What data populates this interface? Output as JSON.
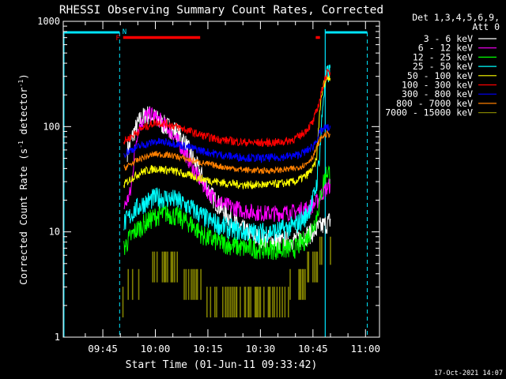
{
  "chart_data": {
    "type": "line",
    "title": "RHESSI Observing Summary Count Rates, Corrected",
    "xlabel": "Start Time (01-Jun-11 09:33:42)",
    "ylabel": "Corrected Count Rate (s",
    "ylabel_sup": "-1",
    "ylabel_tail": " detector",
    "ylabel_sup2": "-1",
    "ylabel_end": ")",
    "yscale": "log",
    "ylim": [
      1,
      1000
    ],
    "xlim_minutes": [
      33.7,
      124
    ],
    "yticks": [
      {
        "v": 1,
        "label": "1"
      },
      {
        "v": 10,
        "label": "10"
      },
      {
        "v": 100,
        "label": "100"
      },
      {
        "v": 1000,
        "label": "1000"
      }
    ],
    "xticks": [
      {
        "m": 45,
        "label": "09:45"
      },
      {
        "m": 60,
        "label": "10:00"
      },
      {
        "m": 75,
        "label": "10:15"
      },
      {
        "m": 90,
        "label": "10:30"
      },
      {
        "m": 105,
        "label": "10:45"
      },
      {
        "m": 120,
        "label": "11:00"
      }
    ],
    "legend_header": [
      "Det 1,3,4,5,6,9,",
      "Att 0"
    ],
    "legend_placement": "top-right outside",
    "series": [
      {
        "name": "3 - 6 keV",
        "color": "#ffffff",
        "noise": 0.1,
        "points": [
          [
            52,
            58
          ],
          [
            54,
            90
          ],
          [
            56,
            120
          ],
          [
            58,
            130
          ],
          [
            60,
            120
          ],
          [
            62,
            105
          ],
          [
            66,
            90
          ],
          [
            68,
            75
          ],
          [
            70,
            55
          ],
          [
            73,
            35
          ],
          [
            76,
            22
          ],
          [
            80,
            15
          ],
          [
            84,
            11
          ],
          [
            88,
            9
          ],
          [
            92,
            8.5
          ],
          [
            96,
            8
          ],
          [
            100,
            8.5
          ],
          [
            104,
            9.5
          ],
          [
            107,
            11
          ],
          [
            109,
            12
          ],
          [
            110,
            13
          ]
        ]
      },
      {
        "name": "6 - 12 keV",
        "color": "#ff00ff",
        "noise": 0.08,
        "points": [
          [
            51,
            17
          ],
          [
            52,
            20
          ],
          [
            53,
            24
          ],
          [
            54,
            55
          ],
          [
            55,
            95
          ],
          [
            57,
            125
          ],
          [
            59,
            130
          ],
          [
            62,
            110
          ],
          [
            65,
            85
          ],
          [
            68,
            60
          ],
          [
            70,
            45
          ],
          [
            73,
            30
          ],
          [
            76,
            22
          ],
          [
            80,
            18
          ],
          [
            85,
            16
          ],
          [
            90,
            15
          ],
          [
            95,
            15
          ],
          [
            100,
            15.5
          ],
          [
            104,
            17
          ],
          [
            106,
            19
          ],
          [
            107.5,
            23
          ],
          [
            109,
            26
          ],
          [
            110,
            28
          ]
        ]
      },
      {
        "name": "12 - 25 keV",
        "color": "#00ff00",
        "noise": 0.1,
        "points": [
          [
            51,
            7
          ],
          [
            52,
            8
          ],
          [
            54,
            10
          ],
          [
            57,
            12
          ],
          [
            60,
            14
          ],
          [
            63,
            15
          ],
          [
            66,
            14
          ],
          [
            70,
            12
          ],
          [
            74,
            9
          ],
          [
            78,
            8
          ],
          [
            85,
            7
          ],
          [
            95,
            6.8
          ],
          [
            100,
            7
          ],
          [
            103,
            8.5
          ],
          [
            105,
            11
          ],
          [
            106,
            14
          ],
          [
            107,
            20
          ],
          [
            108,
            30
          ],
          [
            109,
            38
          ],
          [
            110,
            35
          ]
        ]
      },
      {
        "name": "25 - 50 keV",
        "color": "#00ffff",
        "noise": 0.1,
        "points": [
          [
            51,
            12
          ],
          [
            52,
            13
          ],
          [
            54,
            16
          ],
          [
            57,
            19
          ],
          [
            60,
            21
          ],
          [
            63,
            21
          ],
          [
            66,
            20
          ],
          [
            70,
            17
          ],
          [
            75,
            13
          ],
          [
            80,
            11
          ],
          [
            85,
            10
          ],
          [
            90,
            9.8
          ],
          [
            95,
            10.2
          ],
          [
            100,
            11.5
          ],
          [
            103,
            14
          ],
          [
            105,
            20
          ],
          [
            106,
            28
          ],
          [
            107,
            60
          ],
          [
            108,
            200
          ],
          [
            109,
            310
          ],
          [
            110,
            330
          ]
        ]
      },
      {
        "name": "50 - 100 keV",
        "color": "#ffff00",
        "noise": 0.04,
        "points": [
          [
            51,
            28
          ],
          [
            53,
            32
          ],
          [
            56,
            37
          ],
          [
            60,
            40
          ],
          [
            65,
            38
          ],
          [
            70,
            34
          ],
          [
            75,
            31
          ],
          [
            80,
            29
          ],
          [
            85,
            28
          ],
          [
            90,
            28
          ],
          [
            95,
            28.5
          ],
          [
            100,
            30
          ],
          [
            103,
            34
          ],
          [
            105,
            40
          ],
          [
            106,
            48
          ],
          [
            107,
            150
          ],
          [
            108,
            250
          ],
          [
            109,
            290
          ],
          [
            110,
            300
          ]
        ]
      },
      {
        "name": "100 - 300 keV",
        "color": "#ff0000",
        "noise": 0.04,
        "points": [
          [
            51,
            72
          ],
          [
            53,
            80
          ],
          [
            56,
            95
          ],
          [
            60,
            110
          ],
          [
            64,
            105
          ],
          [
            68,
            95
          ],
          [
            72,
            85
          ],
          [
            76,
            78
          ],
          [
            80,
            74
          ],
          [
            85,
            71
          ],
          [
            90,
            70
          ],
          [
            95,
            71
          ],
          [
            98,
            73
          ],
          [
            101,
            80
          ],
          [
            103,
            92
          ],
          [
            105,
            110
          ],
          [
            106,
            140
          ],
          [
            107,
            180
          ],
          [
            108,
            260
          ],
          [
            109,
            320
          ],
          [
            110,
            330
          ]
        ]
      },
      {
        "name": "300 - 800 keV",
        "color": "#0000ff",
        "noise": 0.04,
        "points": [
          [
            51,
            55
          ],
          [
            53,
            60
          ],
          [
            56,
            66
          ],
          [
            60,
            72
          ],
          [
            65,
            70
          ],
          [
            70,
            63
          ],
          [
            75,
            57
          ],
          [
            80,
            53
          ],
          [
            85,
            51
          ],
          [
            90,
            50
          ],
          [
            95,
            51
          ],
          [
            100,
            53
          ],
          [
            103,
            58
          ],
          [
            105,
            65
          ],
          [
            106,
            75
          ],
          [
            107,
            88
          ],
          [
            108,
            95
          ],
          [
            109,
            98
          ],
          [
            110,
            96
          ]
        ]
      },
      {
        "name": "800 - 7000 keV",
        "color": "#ff8000",
        "noise": 0.03,
        "points": [
          [
            51,
            40
          ],
          [
            53,
            44
          ],
          [
            56,
            50
          ],
          [
            60,
            55
          ],
          [
            65,
            53
          ],
          [
            70,
            48
          ],
          [
            75,
            44
          ],
          [
            80,
            41
          ],
          [
            85,
            39
          ],
          [
            90,
            38
          ],
          [
            95,
            38.5
          ],
          [
            100,
            40
          ],
          [
            103,
            44
          ],
          [
            105,
            52
          ],
          [
            106,
            62
          ],
          [
            107,
            75
          ],
          [
            108,
            82
          ],
          [
            109,
            85
          ],
          [
            110,
            84
          ]
        ]
      },
      {
        "name": "7000 - 15000 keV",
        "color": "#808000",
        "noise": 0,
        "points": [
          [
            50,
            2
          ],
          [
            52,
            3
          ],
          [
            54,
            3.5
          ],
          [
            58,
            4
          ],
          [
            62,
            4.5
          ],
          [
            66,
            4
          ],
          [
            68,
            3.5
          ],
          [
            72,
            3
          ],
          [
            76,
            2.2
          ],
          [
            80,
            2
          ],
          [
            86,
            2
          ],
          [
            92,
            2
          ],
          [
            96,
            2.2
          ],
          [
            100,
            3
          ],
          [
            104,
            4
          ],
          [
            106,
            5
          ],
          [
            107,
            6
          ],
          [
            108,
            7
          ],
          [
            109,
            7.5
          ],
          [
            110,
            8
          ]
        ]
      }
    ],
    "attenuator_markers": {
      "labels": [
        "F",
        "N"
      ]
    },
    "grid": false
  },
  "footer": {
    "date": "17-Oct-2021 14:07"
  }
}
